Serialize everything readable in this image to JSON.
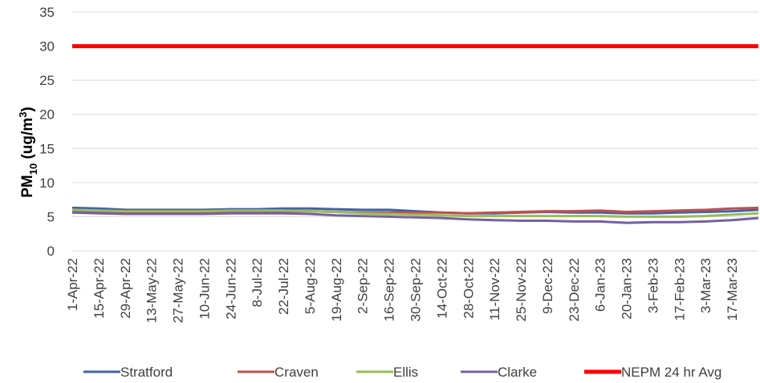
{
  "chart_data": {
    "type": "line",
    "ylabel": {
      "main": "PM",
      "sub": "10",
      "unit_open": " (ug/m",
      "unit_sup": "3",
      "unit_close": ")"
    },
    "ylim": [
      0,
      35
    ],
    "yticks": [
      0,
      5,
      10,
      15,
      20,
      25,
      30,
      35
    ],
    "grid": true,
    "legend_position": "bottom",
    "x_range": [
      "1-Apr-22",
      "31-Mar-23"
    ],
    "x_tick_labels": [
      "1-Apr-22",
      "15-Apr-22",
      "29-Apr-22",
      "13-May-22",
      "27-May-22",
      "10-Jun-22",
      "24-Jun-22",
      "8-Jul-22",
      "22-Jul-22",
      "5-Aug-22",
      "19-Aug-22",
      "2-Sep-22",
      "16-Sep-22",
      "30-Sep-22",
      "14-Oct-22",
      "28-Oct-22",
      "11-Nov-22",
      "25-Nov-22",
      "9-Dec-22",
      "23-Dec-22",
      "6-Jan-23",
      "20-Jan-23",
      "3-Feb-23",
      "17-Feb-23",
      "3-Mar-23",
      "17-Mar-23"
    ],
    "series": [
      {
        "name": "Stratford",
        "color": "#3f64a8",
        "width": 3,
        "x": [
          "1-Apr-22",
          "15-Apr-22",
          "29-Apr-22",
          "13-May-22",
          "27-May-22",
          "10-Jun-22",
          "24-Jun-22",
          "8-Jul-22",
          "22-Jul-22",
          "5-Aug-22",
          "19-Aug-22",
          "2-Sep-22",
          "16-Sep-22",
          "30-Sep-22",
          "14-Oct-22",
          "28-Oct-22",
          "11-Nov-22",
          "25-Nov-22",
          "9-Dec-22",
          "23-Dec-22",
          "6-Jan-23",
          "20-Jan-23",
          "3-Feb-23",
          "17-Feb-23",
          "3-Mar-23",
          "17-Mar-23",
          "31-Mar-23"
        ],
        "values": [
          6.3,
          6.2,
          6.0,
          6.0,
          6.0,
          6.0,
          6.1,
          6.1,
          6.2,
          6.2,
          6.1,
          6.0,
          6.0,
          5.8,
          5.6,
          5.5,
          5.5,
          5.6,
          5.7,
          5.6,
          5.6,
          5.5,
          5.5,
          5.6,
          5.7,
          5.8,
          6.0
        ]
      },
      {
        "name": "Craven",
        "color": "#c0504d",
        "width": 3,
        "x": [
          "1-Apr-22",
          "15-Apr-22",
          "29-Apr-22",
          "13-May-22",
          "27-May-22",
          "10-Jun-22",
          "24-Jun-22",
          "8-Jul-22",
          "22-Jul-22",
          "5-Aug-22",
          "19-Aug-22",
          "2-Sep-22",
          "16-Sep-22",
          "30-Sep-22",
          "14-Oct-22",
          "28-Oct-22",
          "11-Nov-22",
          "25-Nov-22",
          "9-Dec-22",
          "23-Dec-22",
          "6-Jan-23",
          "20-Jan-23",
          "3-Feb-23",
          "17-Feb-23",
          "3-Mar-23",
          "17-Mar-23",
          "31-Mar-23"
        ],
        "values": [
          5.9,
          5.8,
          5.7,
          5.7,
          5.7,
          5.7,
          5.8,
          5.8,
          5.8,
          5.8,
          5.7,
          5.6,
          5.6,
          5.6,
          5.6,
          5.5,
          5.6,
          5.7,
          5.8,
          5.8,
          5.9,
          5.7,
          5.8,
          5.9,
          6.0,
          6.2,
          6.3
        ]
      },
      {
        "name": "Ellis",
        "color": "#9bbb59",
        "width": 3,
        "x": [
          "1-Apr-22",
          "15-Apr-22",
          "29-Apr-22",
          "13-May-22",
          "27-May-22",
          "10-Jun-22",
          "24-Jun-22",
          "8-Jul-22",
          "22-Jul-22",
          "5-Aug-22",
          "19-Aug-22",
          "2-Sep-22",
          "16-Sep-22",
          "30-Sep-22",
          "14-Oct-22",
          "28-Oct-22",
          "11-Nov-22",
          "25-Nov-22",
          "9-Dec-22",
          "23-Dec-22",
          "6-Jan-23",
          "20-Jan-23",
          "3-Feb-23",
          "17-Feb-23",
          "3-Mar-23",
          "17-Mar-23",
          "31-Mar-23"
        ],
        "values": [
          6.0,
          5.9,
          5.8,
          5.8,
          5.8,
          5.8,
          5.9,
          5.9,
          5.9,
          5.8,
          5.7,
          5.5,
          5.4,
          5.3,
          5.2,
          5.1,
          5.1,
          5.1,
          5.1,
          5.1,
          5.1,
          5.0,
          5.0,
          5.0,
          5.1,
          5.3,
          5.5
        ]
      },
      {
        "name": "Clarke",
        "color": "#7361a4",
        "width": 3,
        "x": [
          "1-Apr-22",
          "15-Apr-22",
          "29-Apr-22",
          "13-May-22",
          "27-May-22",
          "10-Jun-22",
          "24-Jun-22",
          "8-Jul-22",
          "22-Jul-22",
          "5-Aug-22",
          "19-Aug-22",
          "2-Sep-22",
          "16-Sep-22",
          "30-Sep-22",
          "14-Oct-22",
          "28-Oct-22",
          "11-Nov-22",
          "25-Nov-22",
          "9-Dec-22",
          "23-Dec-22",
          "6-Jan-23",
          "20-Jan-23",
          "3-Feb-23",
          "17-Feb-23",
          "3-Mar-23",
          "17-Mar-23",
          "31-Mar-23"
        ],
        "values": [
          5.6,
          5.5,
          5.4,
          5.4,
          5.4,
          5.4,
          5.5,
          5.5,
          5.5,
          5.4,
          5.2,
          5.1,
          5.0,
          4.9,
          4.8,
          4.6,
          4.5,
          4.4,
          4.4,
          4.3,
          4.3,
          4.1,
          4.2,
          4.2,
          4.3,
          4.5,
          4.8
        ]
      },
      {
        "name": "NEPM 24 hr Avg",
        "color": "#ff0000",
        "width": 5,
        "x": [
          "1-Apr-22",
          "31-Mar-23"
        ],
        "values": [
          30,
          30
        ]
      }
    ]
  }
}
